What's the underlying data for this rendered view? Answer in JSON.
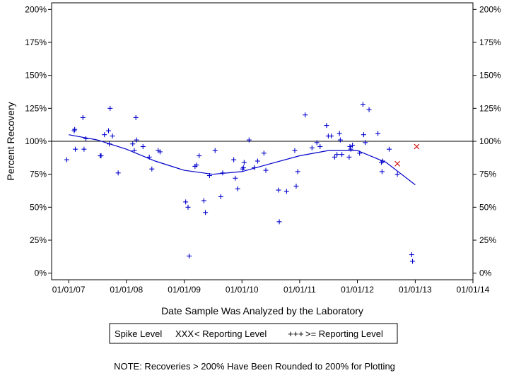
{
  "chart_data": {
    "type": "scatter",
    "xlabel": "Date Sample Was Analyzed by the Laboratory",
    "ylabel": "Percent Recovery",
    "x_range": [
      "2006-09-15",
      "2014-01-01"
    ],
    "ylim": [
      -5,
      205
    ],
    "x_ticks": [
      {
        "date": "2007-01-01",
        "label": "01/01/07"
      },
      {
        "date": "2008-01-01",
        "label": "01/01/08"
      },
      {
        "date": "2009-01-01",
        "label": "01/01/09"
      },
      {
        "date": "2010-01-01",
        "label": "01/01/10"
      },
      {
        "date": "2011-01-01",
        "label": "01/01/11"
      },
      {
        "date": "2012-01-01",
        "label": "01/01/12"
      },
      {
        "date": "2013-01-01",
        "label": "01/01/13"
      },
      {
        "date": "2014-01-01",
        "label": "01/01/14"
      }
    ],
    "y_ticks": [
      {
        "value": 0,
        "label": "0%"
      },
      {
        "value": 25,
        "label": "25%"
      },
      {
        "value": 50,
        "label": "50%"
      },
      {
        "value": 75,
        "label": "75%"
      },
      {
        "value": 100,
        "label": "100%"
      },
      {
        "value": 125,
        "label": "125%"
      },
      {
        "value": 150,
        "label": "150%"
      },
      {
        "value": 175,
        "label": "175%"
      },
      {
        "value": 200,
        "label": "200%"
      }
    ],
    "reference_line": 100,
    "legend": {
      "title": "Spike Level",
      "entries": [
        {
          "symbol": "XXX",
          "label": "< Reporting Level",
          "color": "#cc0000"
        },
        {
          "symbol": "+++",
          "label": ">= Reporting Level",
          "color": "#0000cc"
        }
      ]
    },
    "series": [
      {
        "name": ">= Reporting Level",
        "marker": "plus",
        "color": "#0000cc",
        "points": [
          [
            "2006-12-20",
            86
          ],
          [
            "2007-02-05",
            108
          ],
          [
            "2007-02-08",
            109
          ],
          [
            "2007-02-12",
            94
          ],
          [
            "2007-04-01",
            118
          ],
          [
            "2007-04-08",
            94
          ],
          [
            "2007-04-20",
            102
          ],
          [
            "2007-07-20",
            89
          ],
          [
            "2007-07-25",
            89
          ],
          [
            "2007-08-15",
            105
          ],
          [
            "2007-09-10",
            108
          ],
          [
            "2007-09-15",
            98
          ],
          [
            "2007-09-20",
            125
          ],
          [
            "2007-10-05",
            104
          ],
          [
            "2007-11-10",
            76
          ],
          [
            "2008-02-10",
            98
          ],
          [
            "2008-02-20",
            93
          ],
          [
            "2008-03-01",
            118
          ],
          [
            "2008-03-05",
            101
          ],
          [
            "2008-04-15",
            96
          ],
          [
            "2008-05-25",
            88
          ],
          [
            "2008-06-10",
            79
          ],
          [
            "2008-07-20",
            93
          ],
          [
            "2008-08-01",
            92
          ],
          [
            "2009-01-10",
            54
          ],
          [
            "2009-01-25",
            50
          ],
          [
            "2009-02-01",
            13
          ],
          [
            "2009-03-10",
            81
          ],
          [
            "2009-03-20",
            82
          ],
          [
            "2009-04-05",
            89
          ],
          [
            "2009-05-05",
            55
          ],
          [
            "2009-05-15",
            46
          ],
          [
            "2009-06-10",
            74
          ],
          [
            "2009-07-15",
            93
          ],
          [
            "2009-08-20",
            58
          ],
          [
            "2009-09-01",
            76
          ],
          [
            "2009-11-10",
            86
          ],
          [
            "2009-11-20",
            72
          ],
          [
            "2009-12-05",
            64
          ],
          [
            "2010-01-05",
            79
          ],
          [
            "2010-01-10",
            80
          ],
          [
            "2010-01-15",
            84
          ],
          [
            "2010-02-15",
            101
          ],
          [
            "2010-03-20",
            80
          ],
          [
            "2010-04-10",
            85
          ],
          [
            "2010-05-20",
            91
          ],
          [
            "2010-06-01",
            78
          ],
          [
            "2010-08-20",
            63
          ],
          [
            "2010-08-25",
            39
          ],
          [
            "2010-10-10",
            62
          ],
          [
            "2010-12-01",
            93
          ],
          [
            "2010-12-10",
            66
          ],
          [
            "2010-12-20",
            77
          ],
          [
            "2011-02-05",
            120
          ],
          [
            "2011-03-20",
            95
          ],
          [
            "2011-04-20",
            99
          ],
          [
            "2011-05-10",
            96
          ],
          [
            "2011-06-20",
            112
          ],
          [
            "2011-07-01",
            104
          ],
          [
            "2011-07-20",
            104
          ],
          [
            "2011-08-10",
            88
          ],
          [
            "2011-08-25",
            90
          ],
          [
            "2011-09-10",
            106
          ],
          [
            "2011-09-15",
            101
          ],
          [
            "2011-09-25",
            90
          ],
          [
            "2011-11-10",
            88
          ],
          [
            "2011-11-15",
            96
          ],
          [
            "2011-11-20",
            94
          ],
          [
            "2011-12-01",
            97
          ],
          [
            "2012-01-15",
            91
          ],
          [
            "2012-02-05",
            128
          ],
          [
            "2012-02-10",
            105
          ],
          [
            "2012-02-20",
            99
          ],
          [
            "2012-03-15",
            124
          ],
          [
            "2012-05-10",
            106
          ],
          [
            "2012-06-01",
            84
          ],
          [
            "2012-06-05",
            77
          ],
          [
            "2012-06-10",
            85
          ],
          [
            "2012-07-20",
            94
          ],
          [
            "2012-09-10",
            75
          ],
          [
            "2012-12-10",
            14
          ],
          [
            "2012-12-15",
            9
          ]
        ]
      },
      {
        "name": "< Reporting Level",
        "marker": "x",
        "color": "#cc0000",
        "points": [
          [
            "2012-09-10",
            83
          ],
          [
            "2013-01-10",
            96
          ]
        ]
      }
    ],
    "trend": {
      "color": "#0000cc",
      "points": [
        [
          "2007-01-01",
          105
        ],
        [
          "2007-07-01",
          101
        ],
        [
          "2008-01-01",
          94
        ],
        [
          "2008-07-01",
          85
        ],
        [
          "2009-01-01",
          78
        ],
        [
          "2009-07-01",
          75
        ],
        [
          "2010-01-01",
          77
        ],
        [
          "2010-07-01",
          83
        ],
        [
          "2011-01-01",
          89
        ],
        [
          "2011-07-01",
          93
        ],
        [
          "2012-01-01",
          93
        ],
        [
          "2012-07-01",
          84
        ],
        [
          "2013-01-01",
          67
        ]
      ]
    }
  },
  "footer": {
    "note": "NOTE: Recoveries > 200% Have Been Rounded to 200% for Plotting"
  }
}
